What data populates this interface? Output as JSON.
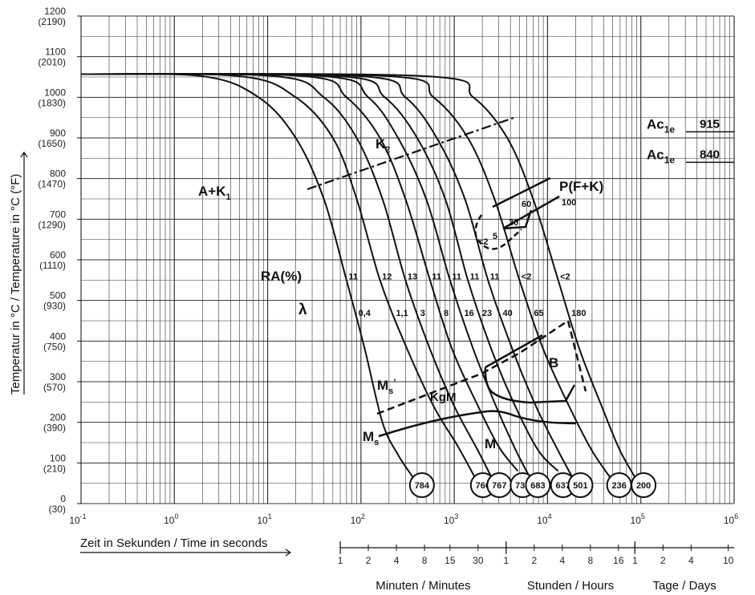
{
  "chart_data": {
    "type": "line",
    "xscale": "log",
    "xlim": [
      0.1,
      1000000
    ],
    "ylim": [
      0,
      1200
    ],
    "grid": true,
    "xlabel": "Zeit in Sekunden / Time in seconds",
    "ylabel": "Temperatur in °C / Temperature in °C (°F)",
    "y_ticks": [
      {
        "c": "0",
        "f": "(30)"
      },
      {
        "c": "100",
        "f": "(210)"
      },
      {
        "c": "200",
        "f": "(390)"
      },
      {
        "c": "300",
        "f": "(570)"
      },
      {
        "c": "400",
        "f": "(750)"
      },
      {
        "c": "500",
        "f": "(930)"
      },
      {
        "c": "600",
        "f": "(1110)"
      },
      {
        "c": "700",
        "f": "(1290)"
      },
      {
        "c": "800",
        "f": "(1470)"
      },
      {
        "c": "900",
        "f": "(1650)"
      },
      {
        "c": "1000",
        "f": "(1830)"
      },
      {
        "c": "1100",
        "f": "(2010)"
      },
      {
        "c": "1200",
        "f": "(2190)"
      }
    ],
    "x_ticks": [
      {
        "base": "10",
        "exp": "-1"
      },
      {
        "base": "10",
        "exp": "0"
      },
      {
        "base": "10",
        "exp": "1"
      },
      {
        "base": "10",
        "exp": "2"
      },
      {
        "base": "10",
        "exp": "3"
      },
      {
        "base": "10",
        "exp": "4"
      },
      {
        "base": "10",
        "exp": "5"
      },
      {
        "base": "10",
        "exp": "6"
      }
    ],
    "secondary_scales": {
      "minutes": {
        "label": "Minuten / Minutes",
        "ticks": [
          "1",
          "2",
          "4",
          "8",
          "15",
          "30"
        ],
        "values_s": [
          60,
          120,
          240,
          480,
          900,
          1800
        ]
      },
      "hours": {
        "label": "Stunden / Hours",
        "ticks": [
          "1",
          "2",
          "4",
          "8",
          "16"
        ],
        "values_s": [
          3600,
          7200,
          14400,
          28800,
          57600
        ]
      },
      "days": {
        "label": "Tage / Days",
        "ticks": [
          "1",
          "2",
          "4",
          "10"
        ],
        "values_s": [
          86400,
          172800,
          345600,
          864000
        ]
      }
    },
    "ac_lines": [
      {
        "label": "Ac",
        "sub": "1e",
        "value": "915",
        "temp": 915
      },
      {
        "label": "Ac",
        "sub": "1e",
        "value": "840",
        "temp": 840
      }
    ],
    "cooling_curves": [
      {
        "hardness": "784",
        "ra": "11",
        "lambda": "0,4",
        "points": [
          [
            0.1,
            1057
          ],
          [
            2,
            1052
          ],
          [
            8,
            1000
          ],
          [
            20,
            900
          ],
          [
            40,
            750
          ],
          [
            70,
            550
          ],
          [
            110,
            380
          ],
          [
            170,
            200
          ],
          [
            250,
            120
          ],
          [
            400,
            50
          ]
        ]
      },
      {
        "hardness": "766",
        "ra": "12",
        "lambda": "1,1",
        "points": [
          [
            0.1,
            1057
          ],
          [
            5,
            1052
          ],
          [
            20,
            1000
          ],
          [
            50,
            900
          ],
          [
            90,
            750
          ],
          [
            160,
            550
          ],
          [
            300,
            390
          ],
          [
            600,
            240
          ],
          [
            1100,
            140
          ],
          [
            1800,
            50
          ]
        ]
      },
      {
        "hardness": "767",
        "ra": "13",
        "lambda": "3",
        "points": [
          [
            0.1,
            1057
          ],
          [
            12,
            1052
          ],
          [
            40,
            1000
          ],
          [
            90,
            900
          ],
          [
            170,
            750
          ],
          [
            300,
            550
          ],
          [
            550,
            380
          ],
          [
            1000,
            240
          ],
          [
            1800,
            130
          ],
          [
            2700,
            50
          ]
        ]
      },
      {
        "hardness": "734",
        "ra": "11",
        "lambda": "8",
        "points": [
          [
            0.1,
            1057
          ],
          [
            25,
            1052
          ],
          [
            70,
            1000
          ],
          [
            160,
            900
          ],
          [
            300,
            750
          ],
          [
            550,
            550
          ],
          [
            950,
            380
          ],
          [
            1800,
            240
          ],
          [
            3000,
            140
          ],
          [
            4800,
            80
          ]
        ]
      },
      {
        "hardness": "683",
        "ra": "11",
        "lambda": "16",
        "points": [
          [
            0.1,
            1057
          ],
          [
            40,
            1052
          ],
          [
            120,
            1000
          ],
          [
            250,
            900
          ],
          [
            500,
            750
          ],
          [
            900,
            550
          ],
          [
            1600,
            380
          ],
          [
            2800,
            240
          ],
          [
            4600,
            130
          ],
          [
            7000,
            50
          ]
        ]
      },
      {
        "hardness": "637",
        "ra": "11",
        "lambda": "23",
        "points": [
          [
            0.1,
            1057
          ],
          [
            60,
            1052
          ],
          [
            180,
            1000
          ],
          [
            400,
            900
          ],
          [
            800,
            750
          ],
          [
            1400,
            550
          ],
          [
            2500,
            380
          ],
          [
            4500,
            240
          ],
          [
            8000,
            130
          ],
          [
            13000,
            80
          ]
        ]
      },
      {
        "hardness": "501",
        "ra": "11",
        "lambda": "40",
        "points": [
          [
            0.1,
            1057
          ],
          [
            100,
            1052
          ],
          [
            300,
            1000
          ],
          [
            650,
            900
          ],
          [
            1300,
            750
          ],
          [
            2300,
            550
          ],
          [
            4200,
            380
          ],
          [
            7500,
            240
          ],
          [
            13000,
            130
          ],
          [
            20000,
            50
          ]
        ]
      },
      {
        "hardness": "236",
        "ra": "<2",
        "lambda": "65",
        "points": [
          [
            0.1,
            1057
          ],
          [
            200,
            1052
          ],
          [
            600,
            1000
          ],
          [
            1400,
            900
          ],
          [
            2700,
            750
          ],
          [
            5000,
            550
          ],
          [
            9000,
            380
          ],
          [
            17000,
            240
          ],
          [
            30000,
            130
          ],
          [
            52000,
            50
          ]
        ]
      },
      {
        "hardness": "200",
        "ra": "<2",
        "lambda": "180",
        "points": [
          [
            0.1,
            1057
          ],
          [
            500,
            1052
          ],
          [
            1600,
            1000
          ],
          [
            3700,
            900
          ],
          [
            7000,
            750
          ],
          [
            13000,
            550
          ],
          [
            22000,
            380
          ],
          [
            38000,
            240
          ],
          [
            60000,
            130
          ],
          [
            95000,
            50
          ]
        ]
      }
    ],
    "regions": {
      "A+K1": {
        "name": "A+K",
        "sub": "1"
      },
      "K2": {
        "name": "K",
        "sub": "2"
      },
      "PFK": "P(F+K)",
      "B": "B",
      "KgM": "KgM",
      "M": "M",
      "Ms": {
        "name": "M",
        "sub": "s"
      },
      "Ms_prime": {
        "name": "M",
        "sub": "s",
        "sup": "’"
      },
      "RA": "RA(%)",
      "lambda": "λ"
    },
    "pearlite_numbers": [
      "<2",
      "5",
      "30",
      "60",
      "100"
    ]
  }
}
